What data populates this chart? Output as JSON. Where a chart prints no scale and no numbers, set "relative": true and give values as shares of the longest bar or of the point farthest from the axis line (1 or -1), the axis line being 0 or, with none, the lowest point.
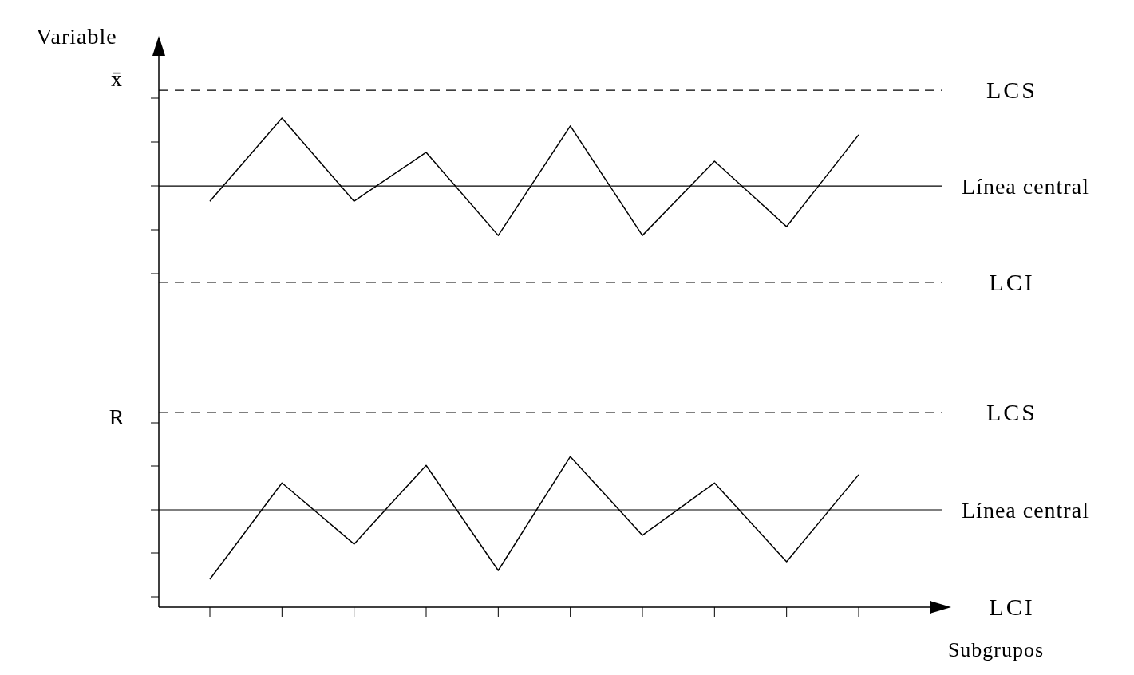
{
  "chart_data": {
    "type": "line",
    "relative": true,
    "ylabel": "Variable",
    "xlabel": "Subgrupos",
    "annotations": [
      "x̄",
      "R"
    ],
    "categories": [
      null,
      null,
      null,
      null,
      null,
      null,
      null,
      null,
      null,
      null
    ],
    "series": [
      {
        "color": "#000000",
        "values": [
          0.83,
          1,
          0.83,
          0.93,
          0.76,
          0.984,
          0.76,
          0.912,
          0.778,
          0.966
        ]
      },
      {
        "color": "#000000",
        "values": [
          0.057,
          0.254,
          0.129,
          0.29,
          0.075,
          0.308,
          0.147,
          0.254,
          0.093,
          0.271
        ]
      }
    ],
    "ref_lines": [
      {
        "axis": "y",
        "value": 1.057,
        "label": "LCS",
        "line_style": "dashed"
      },
      {
        "axis": "y",
        "value": 0.861,
        "label": "Línea central",
        "line_style": "solid"
      },
      {
        "axis": "y",
        "value": 0.664,
        "label": "LCI",
        "line_style": "dashed"
      },
      {
        "axis": "y",
        "value": 0.398,
        "label": "LCS",
        "line_style": "dashed"
      },
      {
        "axis": "y",
        "value": 0.199,
        "label": "Línea central",
        "line_style": "solid"
      },
      {
        "axis": "y",
        "value": 0,
        "label": "LCI",
        "line_style": "solid"
      }
    ],
    "marker": "none",
    "line_style": "solid"
  }
}
